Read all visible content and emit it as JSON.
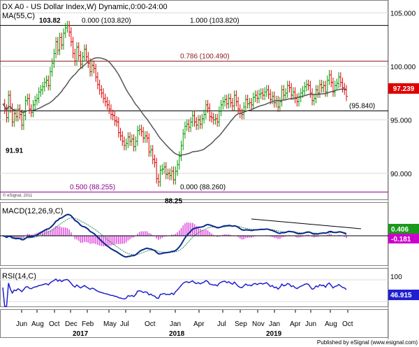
{
  "chart_data": {
    "type": "line",
    "title": "DX A0 - US Dollar Index,W) Dynamic,0:00-24:00",
    "ma_label": "MA(55,C)",
    "macd_label": "MACD(12,26,9,C)",
    "rsi_label": "RSI(14,C)",
    "watermark": "© eSignal, 2011",
    "footer": "Published by eSignal (www.esignal.com)",
    "x_month_labels": [
      "Jun",
      "Aug",
      "Oct",
      "Dec",
      "Feb",
      "May",
      "Jul",
      "Oct",
      "Jan",
      "Apr",
      "Jul",
      "Sep",
      "Nov",
      "Jan",
      "Apr",
      "Jun",
      "Aug",
      "Oct"
    ],
    "x_year_labels": [
      "2017",
      "2018",
      "2019"
    ],
    "y_ticks_price": [
      "105.000",
      "100.000",
      "95.000",
      "90.000"
    ],
    "y_ticks_rsi": [
      "100"
    ],
    "price_ylim": [
      87.5,
      106.2
    ],
    "fib_levels": [
      {
        "label": "0.000 (103.820)",
        "value": 103.82,
        "color": "#000000"
      },
      {
        "label": "1.000 (103.820)",
        "value": 103.82,
        "color": "#000000"
      },
      {
        "label": "0.786 (100.490)",
        "value": 100.49,
        "color": "#8b1a1a"
      },
      {
        "label": "(95.840)",
        "value": 95.84,
        "color": "#000000"
      },
      {
        "label": "0.500 (88.255)",
        "value": 88.255,
        "color": "#8b008b"
      },
      {
        "label": "0.000 (88.260)",
        "value": 88.26,
        "color": "#000000"
      }
    ],
    "price_annotations": [
      {
        "label": "103.82",
        "value": 103.82
      },
      {
        "label": "91.91",
        "value": 91.91
      },
      {
        "label": "88.25",
        "value": 88.25
      }
    ],
    "last_price": "97.239",
    "macd_last": "0.406",
    "signal_last": "-0.181",
    "rsi_last": "46.915",
    "price_close": [
      96.5,
      96.0,
      95.2,
      97.3,
      96.1,
      94.8,
      95.6,
      95.3,
      96.0,
      95.5,
      94.5,
      95.4,
      96.8,
      97.0,
      96.0,
      95.7,
      96.4,
      96.8,
      97.0,
      97.6,
      97.8,
      98.1,
      98.5,
      98.7,
      98.2,
      99.5,
      100.3,
      101.2,
      102.3,
      101.5,
      102.7,
      102.0,
      103.1,
      103.6,
      103.8,
      103.2,
      102.3,
      101.2,
      100.5,
      101.8,
      101.0,
      100.2,
      100.9,
      101.6,
      100.9,
      100.3,
      99.5,
      100.1,
      99.8,
      99.0,
      98.3,
      97.8,
      97.5,
      97.0,
      96.7,
      96.4,
      96.0,
      95.5,
      95.4,
      94.9,
      94.8,
      93.8,
      93.5,
      93.0,
      92.6,
      92.8,
      93.4,
      93.0,
      93.2,
      92.5,
      93.0,
      94.0,
      94.1,
      93.9,
      93.3,
      93.5,
      93.3,
      92.0,
      92.2,
      91.3,
      91.0,
      89.5,
      89.2,
      90.3,
      90.4,
      90.6,
      89.9,
      90.0,
      89.8,
      90.2,
      89.4,
      90.2,
      90.8,
      91.6,
      92.6,
      93.7,
      94.4,
      94.6,
      94.3,
      94.8,
      95.4,
      94.8,
      94.5,
      95.0,
      94.6,
      95.1,
      95.5,
      96.4,
      96.1,
      95.3,
      95.2,
      95.0,
      95.1,
      94.8,
      95.8,
      96.4,
      96.7,
      96.9,
      96.5,
      97.0,
      96.6,
      96.3,
      97.3,
      96.7,
      96.0,
      95.6,
      95.5,
      96.2,
      96.9,
      96.5,
      96.6,
      96.4,
      97.1,
      97.3,
      97.0,
      97.4,
      97.5,
      97.3,
      97.6,
      97.8,
      97.4,
      96.9,
      97.2,
      96.6,
      96.8,
      96.2,
      96.7,
      97.8,
      97.3,
      97.5,
      98.2,
      98.0,
      97.3,
      97.6,
      97.0,
      96.7,
      97.1,
      97.5,
      97.7,
      98.1,
      98.3,
      98.2,
      97.5,
      96.8,
      97.0,
      97.8,
      97.5,
      98.3,
      98.0,
      98.2,
      97.6,
      98.7,
      99.2,
      98.5,
      97.6,
      98.2,
      98.4,
      99.0,
      98.5,
      98.0,
      97.8,
      97.2
    ],
    "rsi_ylim": [
      0,
      100
    ],
    "macd_ylim": [
      -2.8,
      2.8
    ]
  }
}
